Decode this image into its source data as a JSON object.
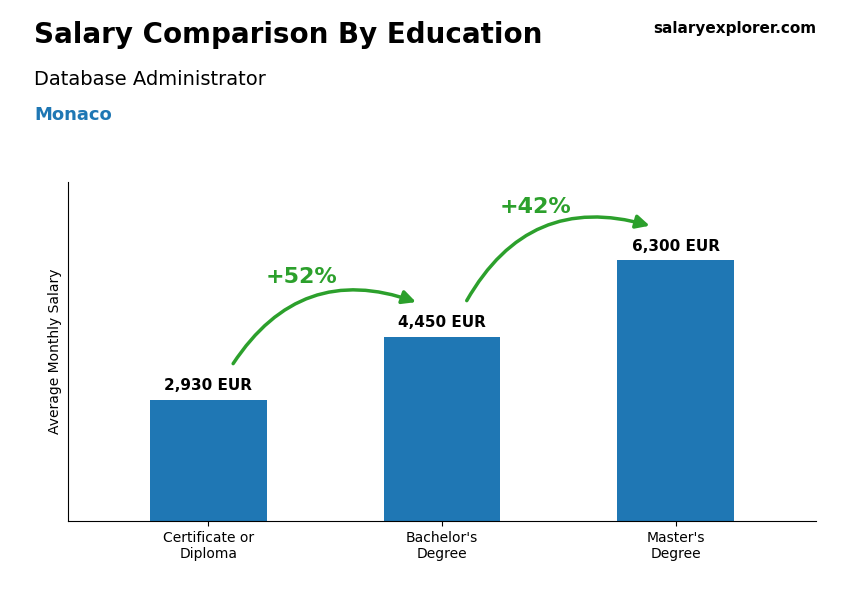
{
  "chart_data": {
    "type": "bar",
    "title": "Salary Comparison By Education",
    "subtitle": "Database Administrator",
    "categories": [
      "Certificate or\nDiploma",
      "Bachelor's\nDegree",
      "Master's\nDegree"
    ],
    "values": [
      2930,
      4450,
      6300
    ],
    "value_labels": [
      "2,930 EUR",
      "4,450 EUR",
      "6,300 EUR"
    ],
    "data_labels": true,
    "ylabel": "Average Monthly Salary",
    "ylim": [
      0,
      8200
    ],
    "yticks": [],
    "tick_labels": "x",
    "grid": false,
    "annotations": [
      {
        "text": "+52%",
        "from": 0,
        "to": 1
      },
      {
        "text": "+42%",
        "from": 1,
        "to": 2
      },
      {
        "text": "Monaco"
      },
      {
        "text": "salaryexplorer.com"
      }
    ]
  }
}
